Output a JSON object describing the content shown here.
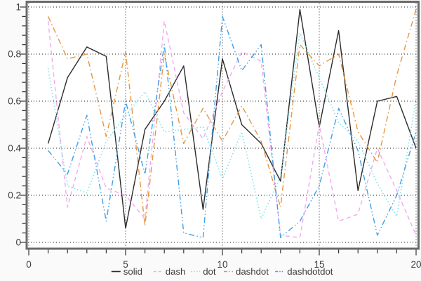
{
  "chart_data": {
    "type": "line",
    "title": "",
    "xlabel": "",
    "ylabel": "",
    "x": [
      1,
      2,
      3,
      4,
      5,
      6,
      7,
      8,
      9,
      10,
      11,
      12,
      13,
      14,
      15,
      16,
      17,
      18,
      19,
      20
    ],
    "series": [
      {
        "name": "solid",
        "style": "solid",
        "color": "#2b2b2b",
        "values": [
          0.42,
          0.7,
          0.83,
          0.79,
          0.06,
          0.48,
          0.6,
          0.75,
          0.14,
          0.78,
          0.5,
          0.42,
          0.26,
          0.99,
          0.49,
          0.9,
          0.22,
          0.6,
          0.62,
          0.4
        ]
      },
      {
        "name": "dash",
        "style": "dash",
        "color": "#f3a8f1",
        "values": [
          0.94,
          0.15,
          0.45,
          0.23,
          0.2,
          0.1,
          0.94,
          0.55,
          0.44,
          0.64,
          0.81,
          0.77,
          0.03,
          0.02,
          0.5,
          0.09,
          0.12,
          0.4,
          0.22,
          0.03
        ]
      },
      {
        "name": "dot",
        "style": "dot",
        "color": "#82e4ea",
        "values": [
          0.74,
          0.24,
          0.21,
          0.43,
          0.54,
          0.64,
          0.47,
          0.48,
          0.49,
          0.27,
          0.47,
          0.1,
          0.28,
          0.89,
          0.7,
          0.51,
          0.43,
          0.25,
          0.11,
          0.61
        ]
      },
      {
        "name": "dashdot",
        "style": "dashdot",
        "color": "#e8953d",
        "values": [
          0.96,
          0.78,
          0.8,
          0.45,
          0.81,
          0.07,
          0.8,
          0.42,
          0.57,
          0.43,
          0.58,
          0.43,
          0.15,
          0.84,
          0.75,
          0.8,
          0.47,
          0.34,
          0.71,
          0.99
        ]
      },
      {
        "name": "dashdotdot",
        "style": "dashdotdot",
        "color": "#3f9fe8",
        "values": [
          0.39,
          0.29,
          0.54,
          0.09,
          0.6,
          0.29,
          0.84,
          0.04,
          0.02,
          0.96,
          0.73,
          0.84,
          0.02,
          0.09,
          0.24,
          0.57,
          0.39,
          0.03,
          0.2,
          0.47
        ]
      }
    ],
    "xlim": [
      0,
      20
    ],
    "ylim": [
      0,
      1
    ],
    "x_ticks": [
      0,
      5,
      10,
      15,
      20
    ],
    "x_tick_labels": [
      "0",
      "5",
      "10",
      "15",
      "20"
    ],
    "y_ticks": [
      0,
      0.2,
      0.4,
      0.6,
      0.8,
      1
    ],
    "y_tick_labels": [
      "0",
      "0.2",
      "0.4",
      "0.6",
      "0.8",
      "1"
    ],
    "x_minor_step": 1,
    "y_minor_step": 0.04,
    "grid": true,
    "legend_position": "bottom-center",
    "legend": [
      "solid",
      "dash",
      "dot",
      "dashdot",
      "dashdotdot"
    ]
  },
  "style": {
    "page_background": "#fafafa",
    "plot_background": "#ffffff",
    "frame_color": "#6a6a6a",
    "grid_color": "#161616",
    "tick_color": "#333333",
    "label_color": "#3c3c3c"
  }
}
